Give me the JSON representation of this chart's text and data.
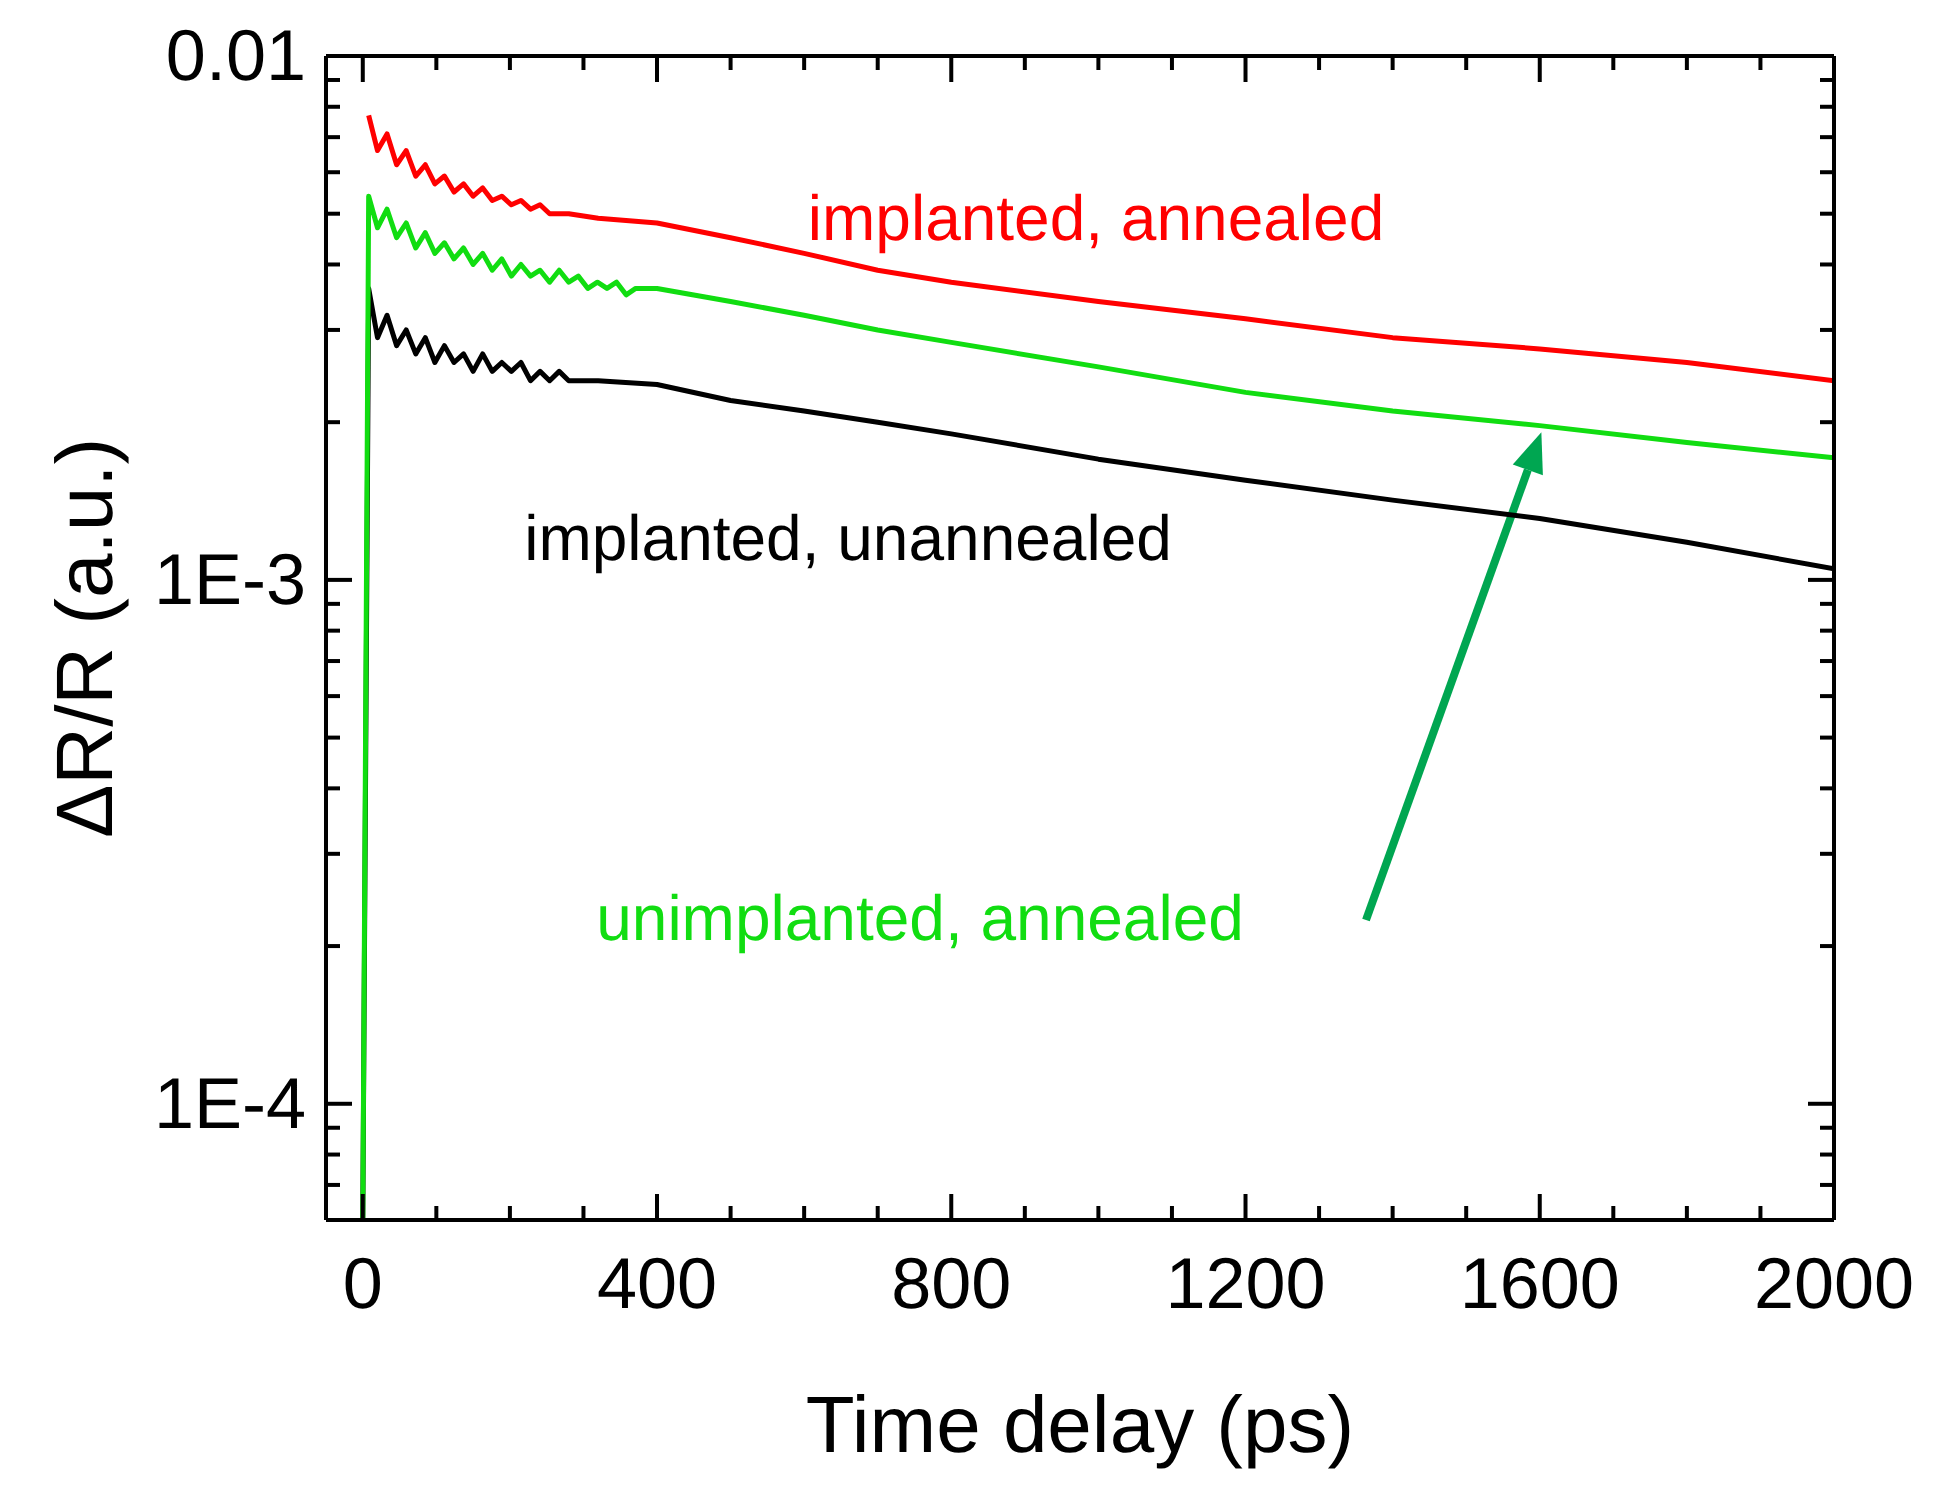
{
  "chart_data": {
    "type": "line",
    "xlabel": "Time delay (ps)",
    "ylabel": "ΔR/R (a.u.)",
    "log": "y",
    "marker": "none",
    "line_style": "solid",
    "xlim": [
      -50,
      2000
    ],
    "ylim": [
      6e-05,
      0.01
    ],
    "xticks": [
      0,
      {
        "value": 100,
        "label": null
      },
      {
        "value": 200,
        "label": null
      },
      {
        "value": 300,
        "label": null
      },
      400,
      {
        "value": 500,
        "label": null
      },
      {
        "value": 600,
        "label": null
      },
      {
        "value": 700,
        "label": null
      },
      800,
      {
        "value": 900,
        "label": null
      },
      {
        "value": 1000,
        "label": null
      },
      {
        "value": 1100,
        "label": null
      },
      1200,
      {
        "value": 1300,
        "label": null
      },
      {
        "value": 1400,
        "label": null
      },
      {
        "value": 1500,
        "label": null
      },
      1600,
      {
        "value": 1700,
        "label": null
      },
      {
        "value": 1800,
        "label": null
      },
      {
        "value": 1900,
        "label": null
      },
      2000
    ],
    "yticks": [
      {
        "value": 7e-05,
        "label": null
      },
      {
        "value": 8e-05,
        "label": null
      },
      {
        "value": 9e-05,
        "label": null
      },
      {
        "value": 0.0001,
        "label": "1E-4"
      },
      {
        "value": 0.0002,
        "label": null
      },
      {
        "value": 0.0003,
        "label": null
      },
      {
        "value": 0.0004,
        "label": null
      },
      {
        "value": 0.0005,
        "label": null
      },
      {
        "value": 0.0006,
        "label": null
      },
      {
        "value": 0.0007,
        "label": null
      },
      {
        "value": 0.0008,
        "label": null
      },
      {
        "value": 0.0009,
        "label": null
      },
      {
        "value": 0.001,
        "label": "1E-3"
      },
      {
        "value": 0.002,
        "label": null
      },
      {
        "value": 0.003,
        "label": null
      },
      {
        "value": 0.004,
        "label": null
      },
      {
        "value": 0.005,
        "label": null
      },
      {
        "value": 0.006,
        "label": null
      },
      {
        "value": 0.007,
        "label": null
      },
      {
        "value": 0.008,
        "label": null
      },
      {
        "value": 0.009,
        "label": null
      },
      {
        "value": 0.01,
        "label": "0.01"
      }
    ],
    "series": [
      {
        "name": "implanted, annealed",
        "color": "#ff0000",
        "x": [
          8,
          20,
          33,
          46,
          59,
          72,
          85,
          98,
          111,
          124,
          137,
          150,
          163,
          176,
          189,
          202,
          215,
          228,
          241,
          254,
          280,
          320,
          400,
          500,
          600,
          700,
          800,
          1000,
          1200,
          1400,
          1600,
          1800,
          2000
        ],
        "values": [
          0.0077,
          0.0066,
          0.0071,
          0.0062,
          0.0066,
          0.0059,
          0.0062,
          0.0057,
          0.0059,
          0.0055,
          0.0057,
          0.0054,
          0.0056,
          0.0053,
          0.0054,
          0.0052,
          0.0053,
          0.0051,
          0.0052,
          0.005,
          0.005,
          0.0049,
          0.0048,
          0.0045,
          0.0042,
          0.0039,
          0.0037,
          0.0034,
          0.00315,
          0.0029,
          0.00276,
          0.0026,
          0.0024
        ]
      },
      {
        "name": "implanted, unannealed",
        "color": "#000000",
        "x": [
          0,
          8,
          20,
          33,
          46,
          59,
          72,
          85,
          98,
          111,
          124,
          137,
          150,
          163,
          176,
          189,
          202,
          215,
          228,
          241,
          254,
          267,
          280,
          320,
          400,
          500,
          600,
          700,
          800,
          1000,
          1200,
          1400,
          1600,
          1800,
          2000
        ],
        "values": [
          6e-05,
          0.0036,
          0.0029,
          0.0032,
          0.0028,
          0.003,
          0.0027,
          0.0029,
          0.0026,
          0.0028,
          0.0026,
          0.0027,
          0.0025,
          0.0027,
          0.0025,
          0.0026,
          0.0025,
          0.0026,
          0.0024,
          0.0025,
          0.0024,
          0.0025,
          0.0024,
          0.0024,
          0.00236,
          0.0022,
          0.0021,
          0.002,
          0.0019,
          0.0017,
          0.00155,
          0.00142,
          0.00131,
          0.00118,
          0.00105
        ]
      },
      {
        "name": "unimplanted, annealed",
        "color": "#11dd11",
        "x": [
          0,
          8,
          20,
          33,
          46,
          59,
          72,
          85,
          98,
          111,
          124,
          137,
          150,
          163,
          176,
          189,
          202,
          215,
          228,
          241,
          254,
          267,
          280,
          293,
          306,
          319,
          332,
          345,
          358,
          371,
          400,
          500,
          600,
          700,
          800,
          1000,
          1200,
          1400,
          1600,
          1800,
          2000
        ],
        "values": [
          6e-05,
          0.0054,
          0.0047,
          0.0051,
          0.0045,
          0.0048,
          0.0043,
          0.0046,
          0.0042,
          0.0044,
          0.0041,
          0.0043,
          0.004,
          0.0042,
          0.0039,
          0.0041,
          0.0038,
          0.004,
          0.0038,
          0.0039,
          0.0037,
          0.0039,
          0.0037,
          0.0038,
          0.0036,
          0.0037,
          0.0036,
          0.0037,
          0.0035,
          0.0036,
          0.0036,
          0.0034,
          0.0032,
          0.003,
          0.00284,
          0.00255,
          0.00228,
          0.0021,
          0.00197,
          0.00183,
          0.00171
        ]
      }
    ]
  }
}
